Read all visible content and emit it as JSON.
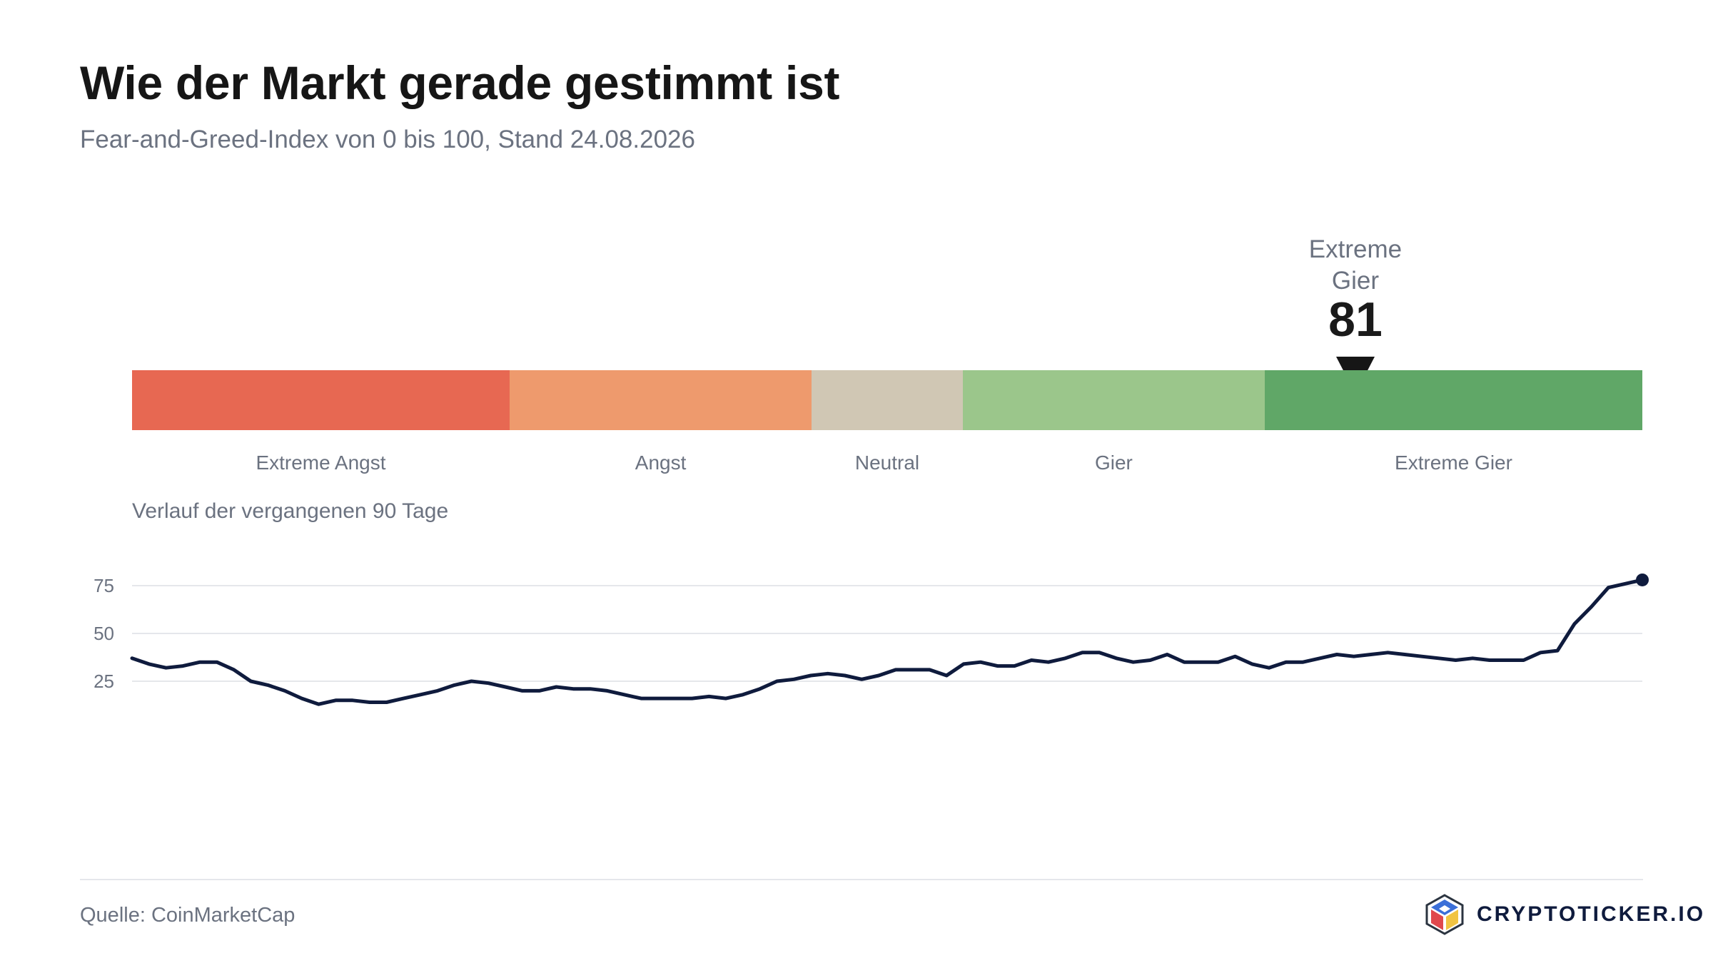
{
  "header": {
    "title": "Wie der Markt gerade gestimmt ist",
    "subtitle": "Fear-and-Greed-Index von 0 bis 100, Stand 24.08.2026"
  },
  "current": {
    "label": "Extreme Gier",
    "value": 81
  },
  "scale": {
    "segments": [
      {
        "label": "Extreme Angst",
        "from": 0,
        "to": 25,
        "color": "#e76852"
      },
      {
        "label": "Angst",
        "from": 25,
        "to": 45,
        "color": "#ee9a6d"
      },
      {
        "label": "Neutral",
        "from": 45,
        "to": 55,
        "color": "#d0c7b4"
      },
      {
        "label": "Gier",
        "from": 55,
        "to": 75,
        "color": "#9bc68b"
      },
      {
        "label": "Extreme Gier",
        "from": 75,
        "to": 100,
        "color": "#60a767"
      }
    ]
  },
  "history": {
    "title": "Verlauf der vergangenen 90 Tage"
  },
  "chart_data": {
    "type": "line",
    "title": "Verlauf der vergangenen 90 Tage",
    "xlabel": "",
    "ylabel": "",
    "ylim": [
      0,
      100
    ],
    "yticks": [
      25,
      50,
      75
    ],
    "grid": true,
    "line_color": "#0f1b3d",
    "series": [
      {
        "values": [
          37,
          34,
          32,
          33,
          35,
          35,
          31,
          25,
          23,
          20,
          16,
          13,
          15,
          15,
          14,
          14,
          16,
          18,
          20,
          23,
          25,
          24,
          22,
          20,
          20,
          22,
          21,
          21,
          20,
          18,
          16,
          16,
          16,
          16,
          17,
          16,
          18,
          21,
          25,
          26,
          28,
          29,
          28,
          26,
          28,
          31,
          31,
          31,
          28,
          34,
          35,
          33,
          33,
          36,
          35,
          37,
          40,
          40,
          37,
          35,
          36,
          39,
          35,
          35,
          35,
          38,
          34,
          32,
          35,
          35,
          37,
          39,
          38,
          39,
          40,
          39,
          38,
          37,
          36,
          37,
          36,
          36,
          36,
          40,
          41,
          55,
          64,
          74,
          76,
          78
        ]
      }
    ]
  },
  "footer": {
    "source": "Quelle: CoinMarketCap",
    "brand": "CRYPTOTICKER.IO"
  }
}
